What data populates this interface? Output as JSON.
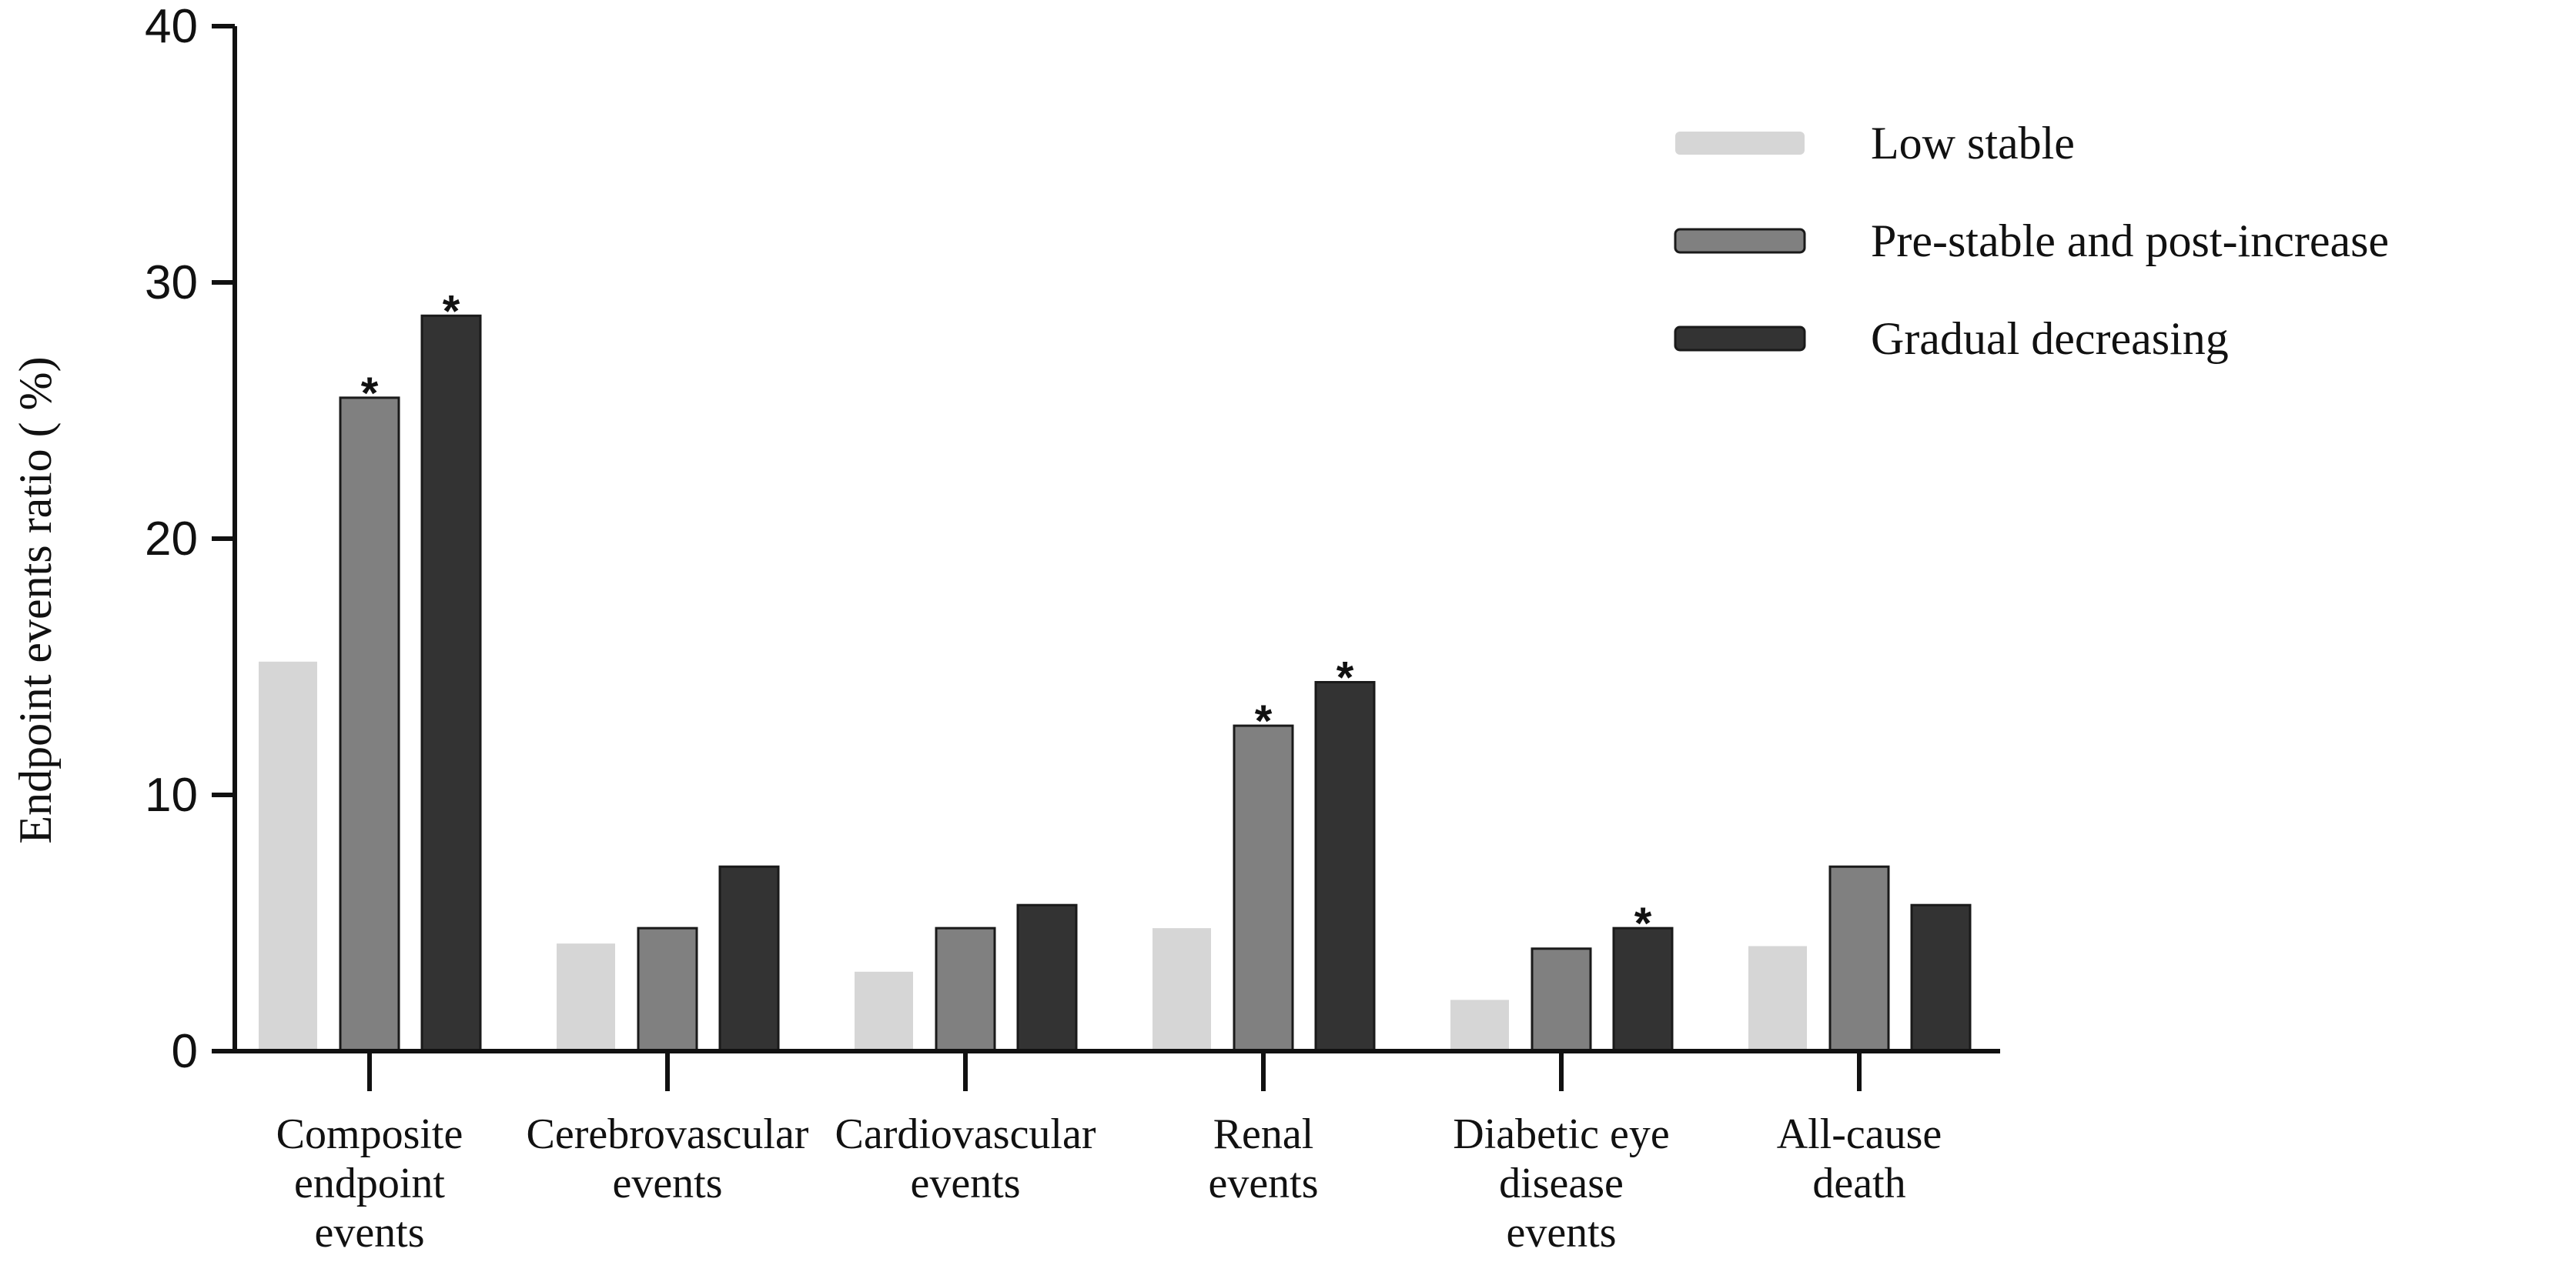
{
  "chart_data": {
    "type": "bar",
    "title": "",
    "xlabel": "",
    "ylabel": "Endpoint events ratio ( %)",
    "ylim": [
      0,
      40
    ],
    "yticks": [
      "0",
      "10",
      "20",
      "30",
      "40"
    ],
    "categories": [
      [
        "Composite",
        "endpoint",
        "events"
      ],
      [
        "Cerebrovascular",
        "events"
      ],
      [
        "Cardiovascular",
        "events"
      ],
      [
        "Renal",
        "events"
      ],
      [
        "Diabetic eye",
        "disease",
        "events"
      ],
      [
        "All-cause",
        "death"
      ]
    ],
    "series": [
      {
        "name": "Low stable",
        "color": "#d6d6d6",
        "values": [
          15.2,
          4.2,
          3.1,
          4.8,
          2.0,
          4.1
        ],
        "significant": [
          false,
          false,
          false,
          false,
          false,
          false
        ]
      },
      {
        "name": "Pre-stable and post-increase",
        "color": "#808080",
        "values": [
          25.5,
          4.8,
          4.8,
          12.7,
          4.0,
          7.2
        ],
        "significant": [
          true,
          false,
          false,
          true,
          false,
          false
        ]
      },
      {
        "name": "Gradual decreasing",
        "color": "#333333",
        "values": [
          28.7,
          7.2,
          5.7,
          14.4,
          4.8,
          5.7
        ],
        "significant": [
          true,
          false,
          false,
          true,
          true,
          false
        ]
      }
    ],
    "significance_symbol": "*",
    "legend_position": "top-right",
    "grid": false
  }
}
